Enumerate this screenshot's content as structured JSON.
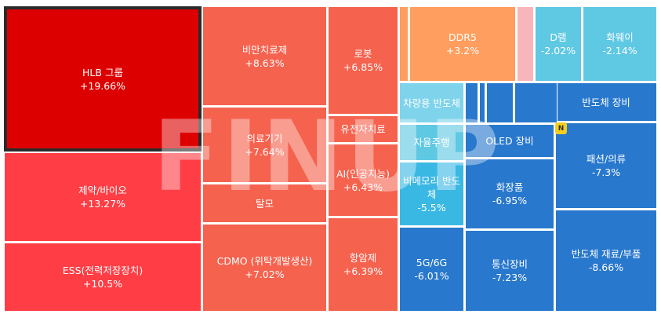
{
  "chart_data": {
    "type": "treemap",
    "items": [
      {
        "id": "hlb",
        "label": "HLB 그룹",
        "change": "+19.66%",
        "value": 19.66,
        "color": "#dd0000",
        "selected": true
      },
      {
        "id": "pharma",
        "label": "제약/바이오",
        "change": "+13.27%",
        "value": 13.27,
        "color": "#ff3d45"
      },
      {
        "id": "ess",
        "label": "ESS(전력저장장치)",
        "change": "+10.5%",
        "value": 10.5,
        "color": "#ff3d45"
      },
      {
        "id": "nonbenefit",
        "label": "비만치료제",
        "change": "+8.63%",
        "value": 8.63,
        "color": "#f5624e"
      },
      {
        "id": "medical",
        "label": "의료기기",
        "change": "+7.64%",
        "value": 7.64,
        "color": "#f5624e"
      },
      {
        "id": "hair",
        "label": "탈모",
        "change": "",
        "value": null,
        "color": "#f5624e"
      },
      {
        "id": "cdmo",
        "label": "CDMO (위탁개발생산)",
        "change": "+7.02%",
        "value": 7.02,
        "color": "#f5624e"
      },
      {
        "id": "robot",
        "label": "로봇",
        "change": "+6.85%",
        "value": 6.85,
        "color": "#f5624e"
      },
      {
        "id": "gene",
        "label": "유전자치료",
        "change": "",
        "value": null,
        "color": "#f5624e"
      },
      {
        "id": "ai",
        "label": "AI(인공지능)",
        "change": "+6.43%",
        "value": 6.43,
        "color": "#f5624e"
      },
      {
        "id": "anticancer",
        "label": "항암제",
        "change": "+6.39%",
        "value": 6.39,
        "color": "#f5624e"
      },
      {
        "id": "ddr5",
        "label": "DDR5",
        "change": "+3.2%",
        "value": 3.2,
        "color": "#ff9e5e"
      },
      {
        "id": "dram",
        "label": "D램",
        "change": "-2.02%",
        "value": -2.02,
        "color": "#5fc8e3"
      },
      {
        "id": "huawei",
        "label": "화웨이",
        "change": "-2.14%",
        "value": -2.14,
        "color": "#5fc8e3"
      },
      {
        "id": "auto-semi",
        "label": "차량용 반도체",
        "change": "",
        "value": null,
        "color": "#7fd3eb"
      },
      {
        "id": "autonomous",
        "label": "자율주행",
        "change": "",
        "value": null,
        "color": "#5fc8e3"
      },
      {
        "id": "nonmemory",
        "label": "비메모리 반도체",
        "change": "-5.5%",
        "value": -5.5,
        "color": "#3ab8e4"
      },
      {
        "id": "5g",
        "label": "5G/6G",
        "change": "-6.01%",
        "value": -6.01,
        "color": "#2878cd"
      },
      {
        "id": "oled",
        "label": "OLED 장비",
        "change": "",
        "value": null,
        "color": "#2878cd"
      },
      {
        "id": "cosmetics",
        "label": "화장품",
        "change": "-6.95%",
        "value": -6.95,
        "color": "#2878cd"
      },
      {
        "id": "telecom",
        "label": "통신장비",
        "change": "-7.23%",
        "value": -7.23,
        "color": "#2878cd"
      },
      {
        "id": "semi-equip",
        "label": "반도체 장비",
        "change": "",
        "value": null,
        "color": "#2878cd"
      },
      {
        "id": "fashion",
        "label": "패션/의류",
        "change": "-7.3%",
        "value": -7.3,
        "color": "#2878cd"
      },
      {
        "id": "semi-material",
        "label": "반도체 재료/부품",
        "change": "-8.66%",
        "value": -8.66,
        "color": "#2878cd"
      },
      {
        "id": "small-orange-1",
        "label": "",
        "change": "",
        "value": null,
        "color": "#ff9e5e"
      },
      {
        "id": "small-pink-1",
        "label": "",
        "change": "",
        "value": null,
        "color": "#f7b6bc"
      },
      {
        "id": "small-blue-1",
        "label": "",
        "change": "",
        "value": null,
        "color": "#2878cd"
      },
      {
        "id": "small-blue-2",
        "label": "",
        "change": "",
        "value": null,
        "color": "#2878cd"
      },
      {
        "id": "small-blue-3",
        "label": "",
        "change": "",
        "value": null,
        "color": "#2878cd"
      },
      {
        "id": "small-blue-4",
        "label": "",
        "change": "",
        "value": null,
        "color": "#2878cd"
      }
    ]
  },
  "badge": {
    "text": "N"
  },
  "watermark": {
    "text": "FINUP"
  }
}
